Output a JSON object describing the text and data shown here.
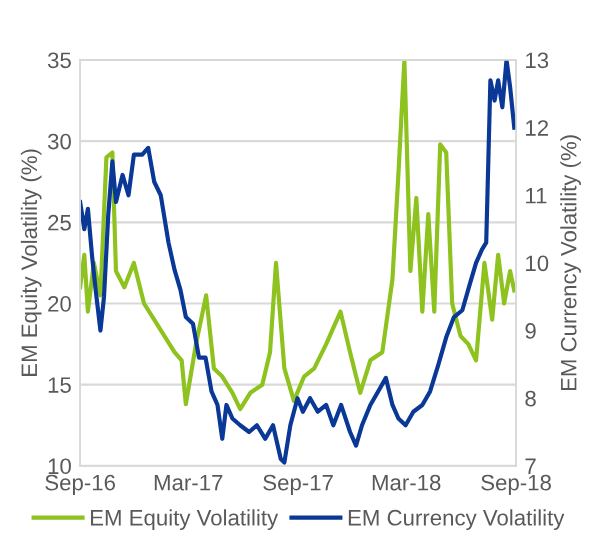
{
  "chart_data": {
    "type": "line",
    "ylabel": "EM Equity Volatility (%)",
    "y2label": "EM Currency Volatility (%)",
    "xlim": [
      "2016-09-01",
      "2018-09-01"
    ],
    "xticks": [
      {
        "value": "2016-09-01",
        "label": "Sep-16"
      },
      {
        "value": "2017-03-01",
        "label": "Mar-17"
      },
      {
        "value": "2017-09-01",
        "label": "Sep-17"
      },
      {
        "value": "2018-03-01",
        "label": "Mar-18"
      },
      {
        "value": "2018-09-01",
        "label": "Sep-18"
      }
    ],
    "ylim": [
      10,
      35
    ],
    "yticks": [
      10,
      15,
      20,
      25,
      30,
      35
    ],
    "y2lim": [
      7,
      13
    ],
    "y2ticks": [
      7,
      8,
      9,
      10,
      11,
      12,
      13
    ],
    "grid": "y",
    "legend": "bottom",
    "line_style": "solid",
    "marker": "none",
    "series": [
      {
        "name": "EM Equity Volatility",
        "color": "#8dc21f",
        "axis": "y",
        "x": [
          "2016-09-01",
          "2016-09-08",
          "2016-09-14",
          "2016-09-24",
          "2016-10-05",
          "2016-10-15",
          "2016-10-25",
          "2016-10-31",
          "2016-11-14",
          "2016-11-30",
          "2016-12-17",
          "2017-01-03",
          "2017-01-20",
          "2017-02-06",
          "2017-02-18",
          "2017-02-25",
          "2017-03-14",
          "2017-03-31",
          "2017-04-13",
          "2017-04-27",
          "2017-05-14",
          "2017-05-27",
          "2017-06-13",
          "2017-07-03",
          "2017-07-16",
          "2017-07-26",
          "2017-08-09",
          "2017-08-25",
          "2017-09-11",
          "2017-09-28",
          "2017-10-18",
          "2017-11-11",
          "2017-11-27",
          "2017-12-14",
          "2017-12-31",
          "2018-01-20",
          "2018-02-06",
          "2018-02-16",
          "2018-02-26",
          "2018-03-08",
          "2018-03-18",
          "2018-03-28",
          "2018-04-07",
          "2018-04-17",
          "2018-04-27",
          "2018-05-07",
          "2018-05-17",
          "2018-05-31",
          "2018-06-13",
          "2018-06-26",
          "2018-07-10",
          "2018-07-23",
          "2018-08-02",
          "2018-08-12",
          "2018-08-22",
          "2018-08-29"
        ],
        "values": [
          21,
          23,
          19.5,
          22.5,
          20.5,
          29,
          29.3,
          22,
          21,
          22.5,
          20,
          19,
          18,
          17,
          16.5,
          13.8,
          17.5,
          20.5,
          16,
          15.5,
          14.5,
          13.5,
          14.5,
          15,
          17,
          22.5,
          16,
          14,
          15.5,
          16,
          17.5,
          19.5,
          17,
          14.5,
          16.5,
          17,
          21.5,
          28,
          35,
          22,
          26.5,
          19.5,
          25.5,
          19.5,
          29.8,
          29.3,
          20,
          18,
          17.5,
          16.5,
          22.5,
          19,
          23,
          20,
          22,
          20.8
        ]
      },
      {
        "name": "EM Currency Volatility",
        "color": "#0a3896",
        "axis": "y2",
        "x": [
          "2016-09-01",
          "2016-09-08",
          "2016-09-14",
          "2016-09-21",
          "2016-09-27",
          "2016-10-05",
          "2016-10-11",
          "2016-10-18",
          "2016-10-25",
          "2016-10-31",
          "2016-11-11",
          "2016-11-21",
          "2016-11-30",
          "2016-12-14",
          "2016-12-24",
          "2017-01-03",
          "2017-01-14",
          "2017-01-27",
          "2017-02-06",
          "2017-02-16",
          "2017-02-25",
          "2017-03-09",
          "2017-03-19",
          "2017-03-30",
          "2017-04-09",
          "2017-04-19",
          "2017-04-27",
          "2017-05-04",
          "2017-05-14",
          "2017-05-27",
          "2017-06-11",
          "2017-06-24",
          "2017-07-08",
          "2017-07-21",
          "2017-08-03",
          "2017-08-09",
          "2017-08-19",
          "2017-08-31",
          "2017-09-09",
          "2017-09-21",
          "2017-10-04",
          "2017-10-18",
          "2017-10-30",
          "2017-11-12",
          "2017-11-27",
          "2017-12-07",
          "2017-12-17",
          "2017-12-31",
          "2018-01-13",
          "2018-01-26",
          "2018-02-06",
          "2018-02-16",
          "2018-02-28",
          "2018-03-13",
          "2018-03-28",
          "2018-04-10",
          "2018-04-24",
          "2018-05-07",
          "2018-05-20",
          "2018-06-03",
          "2018-06-16",
          "2018-06-26",
          "2018-07-06",
          "2018-07-13",
          "2018-07-20",
          "2018-07-27",
          "2018-08-02",
          "2018-08-09",
          "2018-08-16",
          "2018-08-22",
          "2018-08-29"
        ],
        "values": [
          10.9,
          10.5,
          10.8,
          10.1,
          9.6,
          9.0,
          9.5,
          10.7,
          11.5,
          10.9,
          11.3,
          11.0,
          11.6,
          11.6,
          11.7,
          11.2,
          11.0,
          10.3,
          9.9,
          9.6,
          9.2,
          9.1,
          8.6,
          8.6,
          8.1,
          7.9,
          7.4,
          7.9,
          7.7,
          7.6,
          7.5,
          7.6,
          7.4,
          7.6,
          7.1,
          7.05,
          7.6,
          8.0,
          7.8,
          8.0,
          7.8,
          7.9,
          7.6,
          7.9,
          7.5,
          7.3,
          7.6,
          7.9,
          8.1,
          8.3,
          7.9,
          7.7,
          7.6,
          7.8,
          7.9,
          8.1,
          8.5,
          8.9,
          9.2,
          9.3,
          9.7,
          10.0,
          10.2,
          10.3,
          12.7,
          12.4,
          12.7,
          12.3,
          13.0,
          12.6,
          12.0
        ]
      }
    ]
  }
}
